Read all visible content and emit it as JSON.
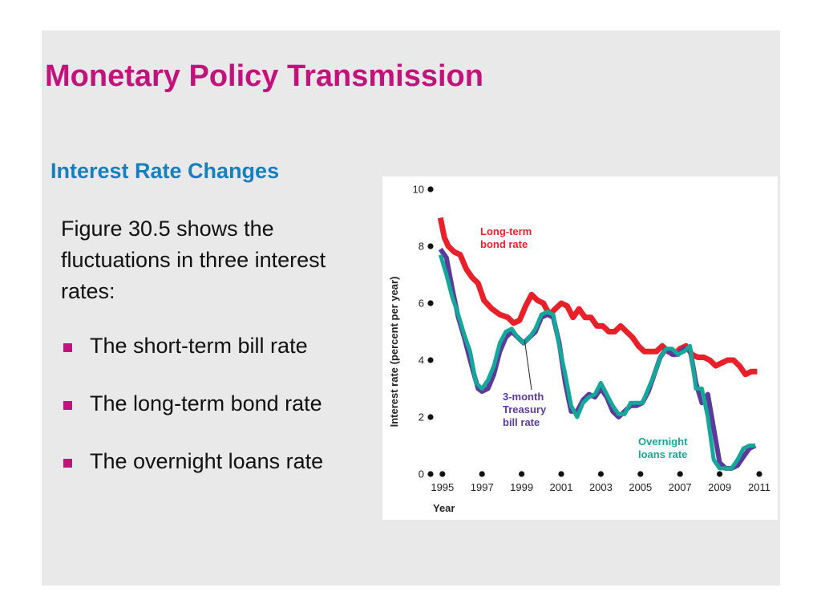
{
  "slide": {
    "title": "Monetary Policy Transmission",
    "subtitle": "Interest Rate Changes",
    "intro": "Figure 30.5 shows the fluctuations in three interest rates:",
    "bullets": [
      "The short-term bill rate",
      "The long-term bond rate",
      "The overnight loans rate"
    ]
  },
  "colors": {
    "title": "#c0147c",
    "subtitle": "#1480be",
    "bullet_marker": "#c0147c",
    "long_term_bond": "#e8202a",
    "treasury_bill": "#5b3a9b",
    "overnight_loans": "#14a89a"
  },
  "chart_data": {
    "type": "line",
    "title": "",
    "xlabel": "Year",
    "ylabel": "Interest rate (percent per year)",
    "xlim": [
      1994.4,
      2011
    ],
    "ylim": [
      0,
      10
    ],
    "xticks": [
      1995,
      1997,
      1999,
      2001,
      2003,
      2005,
      2007,
      2009,
      2011
    ],
    "xtick_labels": [
      "1995",
      "1997",
      "1999",
      "2001",
      "2003",
      "2005",
      "2007",
      "2009",
      "2011"
    ],
    "yticks": [
      0,
      2,
      4,
      6,
      8,
      10
    ],
    "ytick_labels": [
      "0",
      "2",
      "4",
      "6",
      "8",
      "10"
    ],
    "grid": false,
    "legend": "inline labels",
    "series": [
      {
        "name": "Long-term bond rate",
        "label_lines": [
          "Long-term",
          "bond rate"
        ],
        "color": "#e8202a",
        "x": [
          1994.9,
          1995.1,
          1995.3,
          1995.6,
          1995.9,
          1996.2,
          1996.5,
          1996.8,
          1997.1,
          1997.5,
          1997.9,
          1998.3,
          1998.6,
          1998.9,
          1999.2,
          1999.5,
          1999.8,
          2000.1,
          2000.4,
          2000.7,
          2001.0,
          2001.3,
          2001.6,
          2001.9,
          2002.2,
          2002.5,
          2002.8,
          2003.1,
          2003.4,
          2003.7,
          2004.0,
          2004.3,
          2004.6,
          2004.9,
          2005.2,
          2005.5,
          2005.8,
          2006.1,
          2006.4,
          2006.7,
          2007.0,
          2007.3,
          2007.6,
          2007.9,
          2008.2,
          2008.5,
          2008.8,
          2009.1,
          2009.4,
          2009.7,
          2010.0,
          2010.3,
          2010.6,
          2010.9
        ],
        "y": [
          9.0,
          8.3,
          8.0,
          7.8,
          7.7,
          7.2,
          6.9,
          6.7,
          6.1,
          5.8,
          5.6,
          5.5,
          5.3,
          5.4,
          5.9,
          6.3,
          6.1,
          6.0,
          5.6,
          5.8,
          6.0,
          5.9,
          5.5,
          5.8,
          5.5,
          5.5,
          5.2,
          5.2,
          5.0,
          5.0,
          5.2,
          5.0,
          4.8,
          4.5,
          4.3,
          4.3,
          4.3,
          4.5,
          4.3,
          4.2,
          4.4,
          4.5,
          4.2,
          4.1,
          4.1,
          4.0,
          3.8,
          3.9,
          4.0,
          4.0,
          3.8,
          3.5,
          3.6,
          3.6
        ]
      },
      {
        "name": "3-month Treasury bill rate",
        "label_lines": [
          "3-month",
          "Treasury",
          "bill rate"
        ],
        "color": "#5b3a9b",
        "x": [
          1994.9,
          1995.2,
          1995.5,
          1995.8,
          1996.1,
          1996.4,
          1996.6,
          1996.8,
          1997.0,
          1997.3,
          1997.6,
          1997.9,
          1998.2,
          1998.5,
          1998.8,
          1999.1,
          1999.4,
          1999.7,
          2000.0,
          2000.3,
          2000.6,
          2000.9,
          2001.2,
          2001.5,
          2001.8,
          2002.1,
          2002.4,
          2002.7,
          2003.0,
          2003.3,
          2003.6,
          2003.9,
          2004.2,
          2004.5,
          2004.8,
          2005.1,
          2005.4,
          2005.7,
          2006.0,
          2006.3,
          2006.6,
          2006.9,
          2007.2,
          2007.5,
          2007.8,
          2008.1,
          2008.4,
          2008.7,
          2009.0,
          2009.3,
          2009.6,
          2009.9,
          2010.2,
          2010.5,
          2010.8
        ],
        "y": [
          7.9,
          7.6,
          6.5,
          5.5,
          4.8,
          4.0,
          3.5,
          3.0,
          2.9,
          3.0,
          3.5,
          4.3,
          4.8,
          5.0,
          4.8,
          4.6,
          4.8,
          5.0,
          5.5,
          5.6,
          5.5,
          4.6,
          3.2,
          2.2,
          2.2,
          2.6,
          2.8,
          2.7,
          3.0,
          2.7,
          2.2,
          2.0,
          2.2,
          2.4,
          2.4,
          2.5,
          2.9,
          3.5,
          4.1,
          4.4,
          4.2,
          4.2,
          4.4,
          4.4,
          3.2,
          2.5,
          2.8,
          1.6,
          0.4,
          0.2,
          0.2,
          0.3,
          0.6,
          0.9,
          1.0
        ]
      },
      {
        "name": "Overnight loans rate",
        "label_lines": [
          "Overnight",
          "loans rate"
        ],
        "color": "#14a89a",
        "x": [
          1994.9,
          1995.2,
          1995.5,
          1995.8,
          1996.1,
          1996.4,
          1996.7,
          1997.0,
          1997.3,
          1997.6,
          1997.9,
          1998.2,
          1998.5,
          1998.8,
          1999.1,
          1999.4,
          1999.7,
          2000.0,
          2000.3,
          2000.6,
          2000.9,
          2001.2,
          2001.5,
          2001.8,
          2002.1,
          2002.4,
          2002.7,
          2003.0,
          2003.3,
          2003.6,
          2003.9,
          2004.2,
          2004.5,
          2004.8,
          2005.1,
          2005.4,
          2005.7,
          2006.0,
          2006.3,
          2006.6,
          2006.9,
          2007.2,
          2007.5,
          2007.8,
          2008.1,
          2008.4,
          2008.7,
          2009.0,
          2009.3,
          2009.6,
          2009.9,
          2010.2,
          2010.5,
          2010.8
        ],
        "y": [
          7.7,
          7.0,
          6.2,
          5.6,
          4.9,
          4.3,
          3.2,
          3.0,
          3.3,
          3.8,
          4.6,
          5.0,
          5.1,
          4.8,
          4.6,
          4.8,
          5.1,
          5.6,
          5.7,
          5.6,
          4.5,
          3.5,
          2.4,
          2.0,
          2.5,
          2.7,
          2.8,
          3.2,
          2.8,
          2.4,
          2.1,
          2.1,
          2.5,
          2.5,
          2.5,
          3.0,
          3.5,
          4.1,
          4.4,
          4.4,
          4.2,
          4.3,
          4.5,
          3.0,
          3.0,
          2.0,
          0.5,
          0.2,
          0.2,
          0.2,
          0.5,
          0.9,
          1.0,
          1.0
        ]
      }
    ]
  }
}
